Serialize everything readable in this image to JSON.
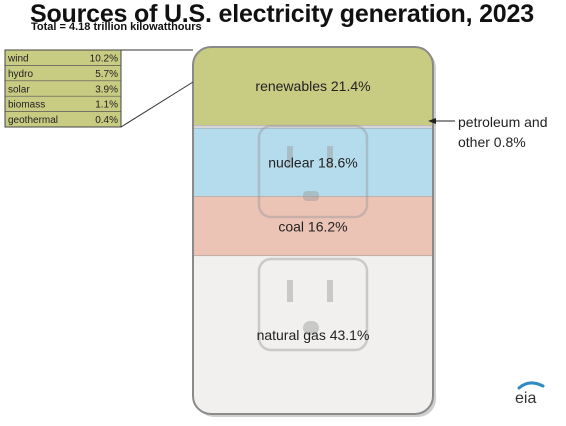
{
  "title": "Sources of U.S. electricity generation, 2023",
  "subtitle": "Total = 4.18 trillion kilowatthours",
  "logo_text": "eia",
  "colors": {
    "renewables": "#c8cb82",
    "petroleum": "#d6d6d6",
    "nuclear": "#b5dcec",
    "coal": "#ecc4b6",
    "natural_gas": "#f1f0ee",
    "legend_bg": "#c8cb82",
    "logo_accent": "#2d8ac2"
  },
  "chart_data": {
    "type": "bar",
    "subtype": "stacked-100-percent",
    "unit": "percent of total generation",
    "segments": [
      {
        "label": "renewables 21.4%",
        "name": "renewables",
        "value": 21.4,
        "color": "#c8cb82"
      },
      {
        "label": "petroleum and other 0.8%",
        "name": "petroleum and other",
        "value": 0.8,
        "color": "#d6d6d6"
      },
      {
        "label": "nuclear 18.6%",
        "name": "nuclear",
        "value": 18.6,
        "color": "#b5dcec"
      },
      {
        "label": "coal 16.2%",
        "name": "coal",
        "value": 16.2,
        "color": "#ecc4b6"
      },
      {
        "label": "natural gas 43.1%",
        "name": "natural gas",
        "value": 43.1,
        "color": "#f1f0ee"
      }
    ],
    "callout": {
      "line1": "petroleum and",
      "line2": "other  0.8%"
    },
    "renewables_breakdown": [
      {
        "name": "wind",
        "value": 10.2,
        "label": "10.2%"
      },
      {
        "name": "hydro",
        "value": 5.7,
        "label": "5.7%"
      },
      {
        "name": "solar",
        "value": 3.9,
        "label": "3.9%"
      },
      {
        "name": "biomass",
        "value": 1.1,
        "label": "1.1%"
      },
      {
        "name": "geothermal",
        "value": 0.4,
        "label": "0.4%"
      }
    ]
  }
}
